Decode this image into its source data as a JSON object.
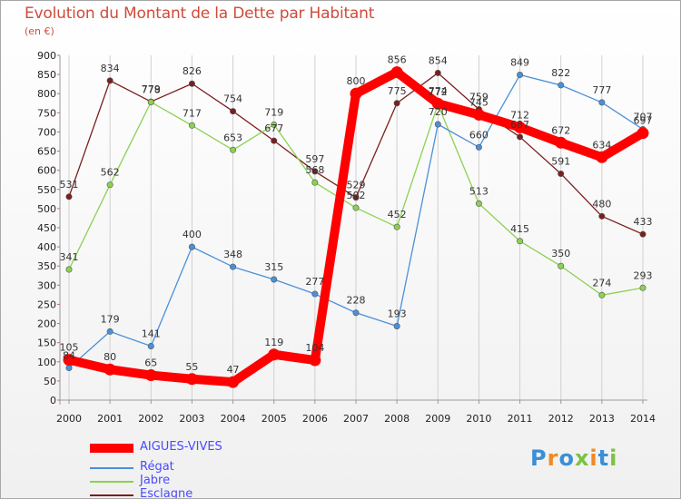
{
  "title": "Evolution du Montant de la Dette par Habitant",
  "subtitle": "(en €)",
  "logo": "Proxiti",
  "chart_data": {
    "type": "line",
    "title": "Evolution du Montant de la Dette par Habitant",
    "ylabel": "(en €)",
    "xlabel": "",
    "x": [
      "2000",
      "2001",
      "2002",
      "2003",
      "2004",
      "2005",
      "2006",
      "2007",
      "2008",
      "2009",
      "2010",
      "2011",
      "2012",
      "2013",
      "2014"
    ],
    "ylim": [
      0,
      900
    ],
    "yticks": [
      0,
      50,
      100,
      150,
      200,
      250,
      300,
      350,
      400,
      450,
      500,
      550,
      600,
      650,
      700,
      750,
      800,
      850,
      900
    ],
    "grid": "x",
    "legend": "bottom-left",
    "series": [
      {
        "name": "AIGUES-VIVES",
        "color": "#ff0000",
        "values": [
          105,
          80,
          65,
          55,
          47,
          119,
          104,
          800,
          856,
          774,
          745,
          712,
          672,
          634,
          697
        ]
      },
      {
        "name": "Régat",
        "color": "#4a90d9",
        "values": [
          84,
          179,
          141,
          400,
          348,
          315,
          277,
          228,
          193,
          720,
          660,
          849,
          822,
          777,
          707
        ]
      },
      {
        "name": "Jabre",
        "color": "#8cd152",
        "values": [
          341,
          562,
          778,
          717,
          653,
          719,
          568,
          502,
          452,
          772,
          513,
          415,
          350,
          274,
          293
        ]
      },
      {
        "name": "Esclagne",
        "color": "#7a1f1f",
        "values": [
          531,
          834,
          779,
          826,
          754,
          677,
          597,
          529,
          775,
          854,
          759,
          687,
          591,
          480,
          433
        ]
      }
    ]
  }
}
